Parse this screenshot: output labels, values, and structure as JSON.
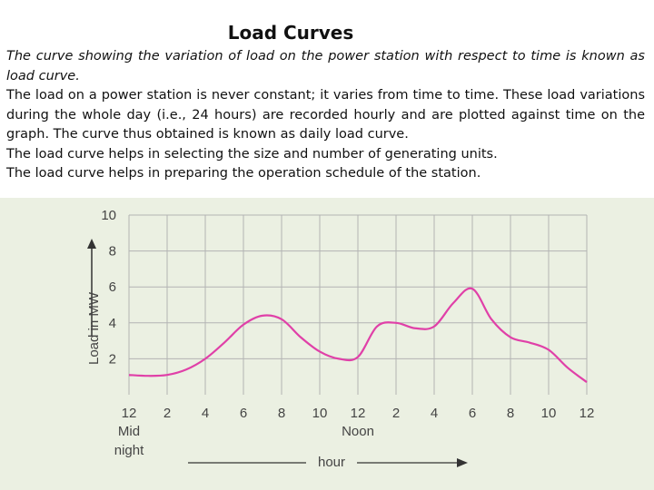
{
  "title": "Load Curves",
  "paragraphs": [
    "The curve showing the variation of load on the power station with respect to time is known as load curve.",
    "The load on a power station is never constant; it varies from time to time. These load variations during the whole day (i.e., 24 hours) are recorded hourly and are plotted against time on the graph. The curve thus obtained is known as  daily load curve.",
    "The load curve helps in selecting the size and number of generating units.",
    "The load curve helps in preparing the operation schedule of the station."
  ],
  "colors": {
    "curve": "#e040a8",
    "panel_background": "#ebf0e2",
    "grid": "#b3b3b3"
  },
  "chart_data": {
    "type": "line",
    "title": "",
    "xlabel": "hour",
    "ylabel": "Load in MW",
    "x_tick_labels": [
      "12",
      "2",
      "4",
      "6",
      "8",
      "10",
      "12",
      "2",
      "4",
      "6",
      "8",
      "10",
      "12"
    ],
    "x_tick_sublabels": [
      {
        "tick_index": 0,
        "text": [
          "Mid",
          "night"
        ]
      },
      {
        "tick_index": 6,
        "text": [
          "Noon"
        ]
      }
    ],
    "y_ticks": [
      2,
      4,
      6,
      8,
      10
    ],
    "xlim": [
      0,
      24
    ],
    "ylim": [
      0,
      10
    ],
    "grid": true,
    "series": [
      {
        "name": "",
        "x": [
          0,
          1,
          2,
          3,
          4,
          5,
          6,
          7,
          8,
          9,
          10,
          11,
          12,
          13,
          14,
          15,
          16,
          17,
          18,
          19,
          20,
          21,
          22,
          23,
          24
        ],
        "y": [
          1.1,
          1.05,
          1.1,
          1.4,
          2.0,
          2.9,
          3.9,
          4.4,
          4.2,
          3.2,
          2.4,
          2.0,
          2.1,
          3.8,
          4.0,
          3.7,
          3.8,
          5.1,
          5.9,
          4.2,
          3.2,
          2.9,
          2.5,
          1.5,
          0.7
        ]
      }
    ]
  }
}
